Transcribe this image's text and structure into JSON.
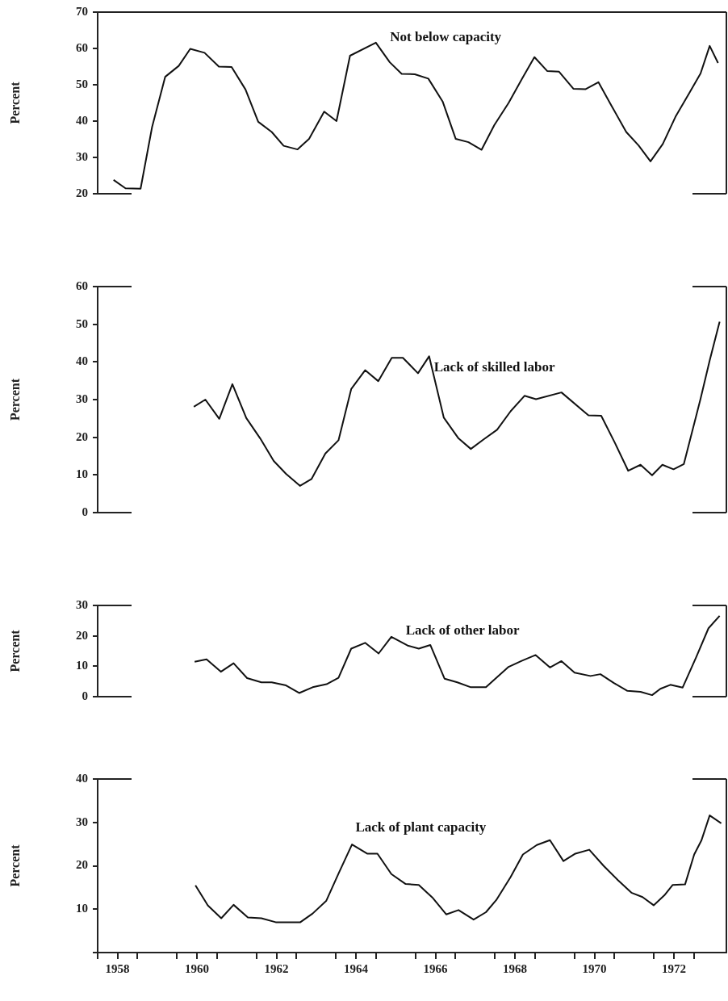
{
  "chart_data": [
    {
      "type": "line",
      "ylabel": "Percent",
      "xlim": [
        1958,
        1973.82
      ],
      "ylim": [
        20,
        70
      ],
      "yticks": [
        20,
        30,
        40,
        50,
        60,
        70
      ],
      "tick_labels": "y",
      "legend": false,
      "marker": "none",
      "line_style": "solid",
      "series": [
        {
          "name": "Not below capacity",
          "color": "#111111",
          "x": [
            1958.4,
            1958.7,
            1959.08,
            1959.37,
            1959.7,
            1960.04,
            1960.33,
            1960.69,
            1961.05,
            1961.37,
            1961.72,
            1962.04,
            1962.38,
            1962.68,
            1963.03,
            1963.32,
            1963.7,
            1964.01,
            1964.35,
            1965.0,
            1965.35,
            1965.65,
            1965.98,
            1966.32,
            1966.68,
            1967.01,
            1967.33,
            1967.66,
            1967.98,
            1968.34,
            1968.67,
            1968.99,
            1969.31,
            1969.61,
            1969.97,
            1970.28,
            1970.6,
            1970.94,
            1971.3,
            1971.61,
            1971.91,
            1972.22,
            1972.54,
            1972.89,
            1973.17,
            1973.4,
            1973.61
          ],
          "values": [
            23.8,
            21.5,
            21.4,
            38.4,
            52.2,
            55.2,
            59.9,
            58.8,
            55.0,
            54.9,
            48.7,
            39.8,
            37.0,
            33.2,
            32.2,
            35.1,
            42.6,
            40.0,
            58.0,
            61.6,
            56.2,
            53.0,
            52.9,
            51.7,
            45.4,
            35.1,
            34.2,
            32.1,
            38.9,
            45.0,
            51.5,
            57.6,
            53.8,
            53.6,
            48.9,
            48.8,
            50.7,
            44.0,
            37.0,
            33.3,
            28.9,
            33.7,
            41.2,
            47.8,
            53.1,
            60.7,
            56.0
          ]
        }
      ]
    },
    {
      "type": "line",
      "ylabel": "Percent",
      "xlim": [
        1958,
        1973.82
      ],
      "ylim": [
        0,
        60
      ],
      "yticks": [
        0,
        10,
        20,
        30,
        40,
        50,
        60
      ],
      "tick_labels": "y",
      "legend": false,
      "marker": "none",
      "line_style": "solid",
      "series": [
        {
          "name": "Lack of skilled labor",
          "color": "#111111",
          "x": [
            1960.42,
            1960.71,
            1961.06,
            1961.39,
            1961.74,
            1962.09,
            1962.43,
            1962.74,
            1963.09,
            1963.38,
            1963.73,
            1964.06,
            1964.38,
            1964.73,
            1965.06,
            1965.4,
            1965.68,
            1966.06,
            1966.34,
            1966.71,
            1967.08,
            1967.39,
            1967.72,
            1968.05,
            1968.39,
            1968.74,
            1969.03,
            1969.67,
            1970.35,
            1970.67,
            1971.02,
            1971.35,
            1971.66,
            1971.95,
            1972.21,
            1972.49,
            1972.75,
            1973.17,
            1973.4,
            1973.65
          ],
          "values": [
            28.1,
            30.0,
            24.9,
            34.1,
            25.1,
            19.7,
            13.7,
            10.3,
            7.1,
            8.9,
            15.7,
            19.2,
            32.8,
            37.8,
            34.9,
            41.1,
            41.1,
            37.0,
            41.5,
            25.2,
            19.7,
            16.9,
            19.5,
            22.0,
            26.9,
            31.0,
            30.1,
            31.9,
            25.8,
            25.7,
            18.4,
            11.1,
            12.7,
            9.9,
            12.7,
            11.5,
            12.9,
            30.2,
            40.4,
            50.7
          ]
        }
      ]
    },
    {
      "type": "line",
      "ylabel": "Percent",
      "xlim": [
        1958,
        1973.82
      ],
      "ylim": [
        0,
        30
      ],
      "yticks": [
        0,
        10,
        20,
        30
      ],
      "tick_labels": "y",
      "legend": false,
      "marker": "none",
      "line_style": "solid",
      "series": [
        {
          "name": "Lack of other labor",
          "color": "#111111",
          "x": [
            1960.44,
            1960.74,
            1961.1,
            1961.42,
            1961.76,
            1962.12,
            1962.38,
            1962.74,
            1963.07,
            1963.41,
            1963.76,
            1964.06,
            1964.38,
            1964.73,
            1965.07,
            1965.39,
            1965.8,
            1966.08,
            1966.37,
            1966.73,
            1967.05,
            1967.39,
            1967.77,
            1968.34,
            1968.67,
            1969.02,
            1969.38,
            1969.67,
            1970.0,
            1970.4,
            1970.65,
            1970.99,
            1971.33,
            1971.66,
            1971.95,
            1972.16,
            1972.41,
            1972.72,
            1973.06,
            1973.37,
            1973.65
          ],
          "values": [
            11.5,
            12.3,
            8.2,
            11.0,
            6.1,
            4.7,
            4.7,
            3.7,
            1.2,
            3.1,
            4.1,
            6.2,
            15.8,
            17.7,
            14.2,
            19.7,
            16.8,
            15.8,
            17.0,
            5.9,
            4.7,
            3.1,
            3.1,
            9.8,
            11.8,
            13.7,
            9.6,
            11.7,
            7.9,
            6.8,
            7.4,
            4.5,
            1.9,
            1.6,
            0.5,
            2.6,
            3.9,
            3.0,
            13.0,
            22.5,
            26.6
          ]
        }
      ]
    },
    {
      "type": "line",
      "ylabel": "Percent",
      "xlim": [
        1958,
        1973.82
      ],
      "ylim": [
        0,
        40
      ],
      "yticks": [
        {
          "value": 0,
          "label": null
        },
        10,
        20,
        30,
        40
      ],
      "xticks": [
        {
          "value": 1958,
          "label": null
        },
        {
          "value": 1958.5,
          "label": "1958"
        },
        {
          "value": 1959,
          "label": null
        },
        {
          "value": 1960,
          "label": null
        },
        {
          "value": 1960.5,
          "label": "1960"
        },
        {
          "value": 1961,
          "label": null
        },
        {
          "value": 1962,
          "label": null
        },
        {
          "value": 1962.5,
          "label": "1962"
        },
        {
          "value": 1963,
          "label": null
        },
        {
          "value": 1964,
          "label": null
        },
        {
          "value": 1964.5,
          "label": "1964"
        },
        {
          "value": 1965,
          "label": null
        },
        {
          "value": 1966,
          "label": null
        },
        {
          "value": 1966.5,
          "label": "1966"
        },
        {
          "value": 1967,
          "label": null
        },
        {
          "value": 1968,
          "label": null
        },
        {
          "value": 1968.5,
          "label": "1968"
        },
        {
          "value": 1969,
          "label": null
        },
        {
          "value": 1970,
          "label": null
        },
        {
          "value": 1970.5,
          "label": "1970"
        },
        {
          "value": 1971,
          "label": null
        },
        {
          "value": 1972,
          "label": null
        },
        {
          "value": 1972.5,
          "label": "1972"
        },
        {
          "value": 1973,
          "label": null
        }
      ],
      "legend": false,
      "marker": "none",
      "line_style": "solid",
      "series": [
        {
          "name": "Lack of plant capacity",
          "color": "#111111",
          "x": [
            1960.46,
            1960.77,
            1961.11,
            1961.42,
            1961.78,
            1962.12,
            1962.48,
            1963.1,
            1963.41,
            1963.75,
            1964.07,
            1964.4,
            1964.78,
            1965.04,
            1965.39,
            1965.75,
            1966.08,
            1966.42,
            1966.77,
            1967.08,
            1967.46,
            1967.77,
            1968.03,
            1968.39,
            1968.7,
            1969.05,
            1969.38,
            1969.72,
            1970.02,
            1970.37,
            1970.73,
            1971.09,
            1971.43,
            1971.71,
            1971.99,
            1972.26,
            1972.47,
            1972.78,
            1973.01,
            1973.19,
            1973.4,
            1973.69
          ],
          "values": [
            15.5,
            10.9,
            7.9,
            11.0,
            8.1,
            7.9,
            7.0,
            7.0,
            9.0,
            11.9,
            18.4,
            24.9,
            22.8,
            22.8,
            18.1,
            15.8,
            15.6,
            12.7,
            8.8,
            9.8,
            7.6,
            9.3,
            12.1,
            17.4,
            22.6,
            24.8,
            25.9,
            21.1,
            22.8,
            23.7,
            20.0,
            16.7,
            13.8,
            12.8,
            10.9,
            13.2,
            15.6,
            15.7,
            22.6,
            25.8,
            31.6,
            29.8
          ]
        }
      ]
    }
  ]
}
